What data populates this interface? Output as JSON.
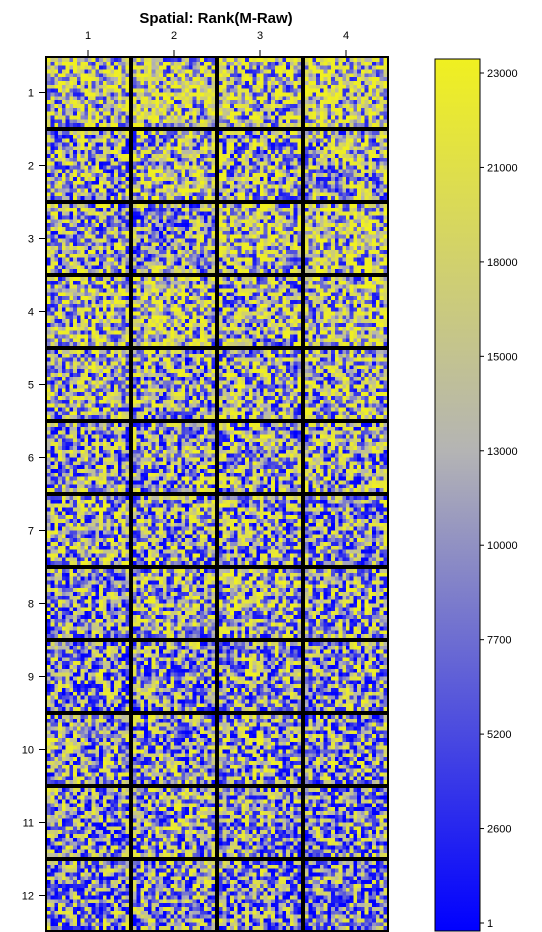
{
  "chart_data": {
    "type": "heatmap",
    "title": "Spatial: Rank(M-Raw)",
    "x_categories": [
      "1",
      "2",
      "3",
      "4"
    ],
    "y_categories": [
      "1",
      "2",
      "3",
      "4",
      "5",
      "6",
      "7",
      "8",
      "9",
      "10",
      "11",
      "12"
    ],
    "grid_shape": {
      "block_rows": 12,
      "block_cols": 4,
      "spot_rows_per_block": 18,
      "spot_cols_per_block": 22
    },
    "value_range": [
      1,
      23000
    ],
    "colorbar_ticks": [
      23000,
      21000,
      18000,
      15000,
      13000,
      10000,
      7700,
      5200,
      2600,
      1
    ],
    "colormap": {
      "low": "#0000ff",
      "mid": "#b4b4b4",
      "high": "#f0f020"
    },
    "legend_position": "right",
    "block_mean_fraction": [
      [
        0.66,
        0.68,
        0.65,
        0.72
      ],
      [
        0.52,
        0.6,
        0.56,
        0.58
      ],
      [
        0.55,
        0.45,
        0.62,
        0.66
      ],
      [
        0.64,
        0.66,
        0.58,
        0.62
      ],
      [
        0.6,
        0.5,
        0.55,
        0.6
      ],
      [
        0.48,
        0.52,
        0.5,
        0.53
      ],
      [
        0.55,
        0.52,
        0.5,
        0.46
      ],
      [
        0.44,
        0.56,
        0.56,
        0.52
      ],
      [
        0.44,
        0.42,
        0.52,
        0.46
      ],
      [
        0.46,
        0.45,
        0.5,
        0.44
      ],
      [
        0.44,
        0.52,
        0.46,
        0.4
      ],
      [
        0.4,
        0.46,
        0.42,
        0.35
      ]
    ]
  }
}
